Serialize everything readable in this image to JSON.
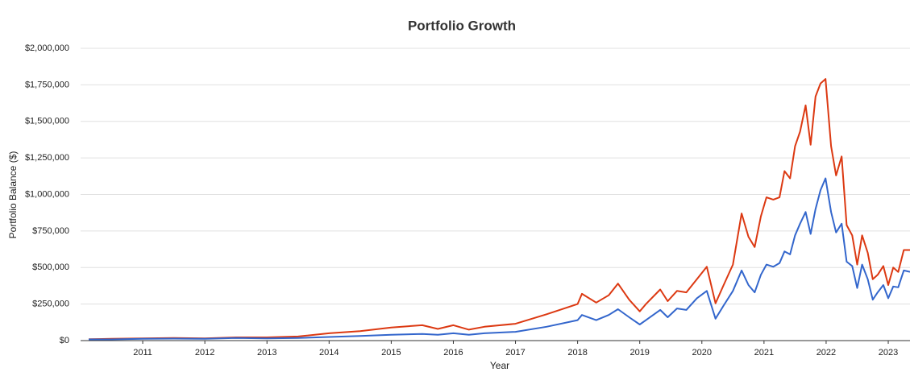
{
  "chart_data": {
    "type": "line",
    "title": "Portfolio Growth",
    "x_label": "Year",
    "y_label": "Portfolio Balance ($)",
    "x": [
      2010.13,
      2010.5,
      2011,
      2011.5,
      2012,
      2012.5,
      2013,
      2013.5,
      2014,
      2014.5,
      2015,
      2015.5,
      2015.75,
      2016,
      2016.25,
      2016.5,
      2017,
      2017.5,
      2018,
      2018.07,
      2018.3,
      2018.5,
      2018.65,
      2018.83,
      2019,
      2019.1,
      2019.33,
      2019.45,
      2019.6,
      2019.75,
      2019.92,
      2020.08,
      2020.22,
      2020.35,
      2020.5,
      2020.64,
      2020.75,
      2020.85,
      2020.95,
      2021.04,
      2021.15,
      2021.25,
      2021.33,
      2021.42,
      2021.5,
      2021.58,
      2021.67,
      2021.75,
      2021.83,
      2021.91,
      2021.99,
      2022.08,
      2022.16,
      2022.25,
      2022.33,
      2022.42,
      2022.5,
      2022.58,
      2022.67,
      2022.75,
      2022.83,
      2022.92,
      2023,
      2023.08,
      2023.16,
      2023.25,
      2023.35
    ],
    "series": [
      {
        "color": "#dc3912",
        "values": [
          10000,
          12000,
          15000,
          18000,
          15000,
          22000,
          22000,
          28000,
          50000,
          65000,
          90000,
          105000,
          80000,
          105000,
          75000,
          95000,
          115000,
          180000,
          250000,
          320000,
          260000,
          310000,
          390000,
          280000,
          200000,
          250000,
          350000,
          270000,
          340000,
          330000,
          420000,
          505000,
          255000,
          380000,
          520000,
          870000,
          710000,
          640000,
          850000,
          980000,
          965000,
          980000,
          1160000,
          1110000,
          1330000,
          1430000,
          1610000,
          1340000,
          1670000,
          1760000,
          1790000,
          1330000,
          1130000,
          1260000,
          790000,
          720000,
          520000,
          720000,
          600000,
          420000,
          450000,
          510000,
          380000,
          500000,
          470000,
          620000,
          620000
        ]
      },
      {
        "color": "#3366cc",
        "values": [
          8000,
          8000,
          12000,
          14000,
          12000,
          18000,
          15000,
          18000,
          25000,
          32000,
          40000,
          45000,
          40000,
          50000,
          40000,
          50000,
          60000,
          95000,
          140000,
          175000,
          140000,
          175000,
          215000,
          160000,
          110000,
          140000,
          210000,
          160000,
          220000,
          210000,
          290000,
          340000,
          150000,
          240000,
          340000,
          480000,
          380000,
          330000,
          450000,
          520000,
          505000,
          530000,
          610000,
          590000,
          720000,
          800000,
          880000,
          730000,
          900000,
          1030000,
          1110000,
          880000,
          740000,
          800000,
          540000,
          510000,
          360000,
          520000,
          420000,
          280000,
          330000,
          380000,
          290000,
          370000,
          365000,
          480000,
          470000
        ]
      }
    ],
    "xlim": [
      2010.13,
      2023.35
    ],
    "xticks": [
      2011,
      2012,
      2013,
      2014,
      2015,
      2016,
      2017,
      2018,
      2019,
      2020,
      2021,
      2022,
      2023
    ],
    "ylim": [
      0,
      2000000
    ],
    "yticks": [
      {
        "value": 0,
        "label": "$0"
      },
      {
        "value": 250000,
        "label": "$250,000"
      },
      {
        "value": 500000,
        "label": "$500,000"
      },
      {
        "value": 750000,
        "label": "$750,000"
      },
      {
        "value": 1000000,
        "label": "$1,000,000"
      },
      {
        "value": 1250000,
        "label": "$1,250,000"
      },
      {
        "value": 1500000,
        "label": "$1,500,000"
      },
      {
        "value": 1750000,
        "label": "$1,750,000"
      },
      {
        "value": 2000000,
        "label": "$2,000,000"
      }
    ],
    "grid": true
  }
}
